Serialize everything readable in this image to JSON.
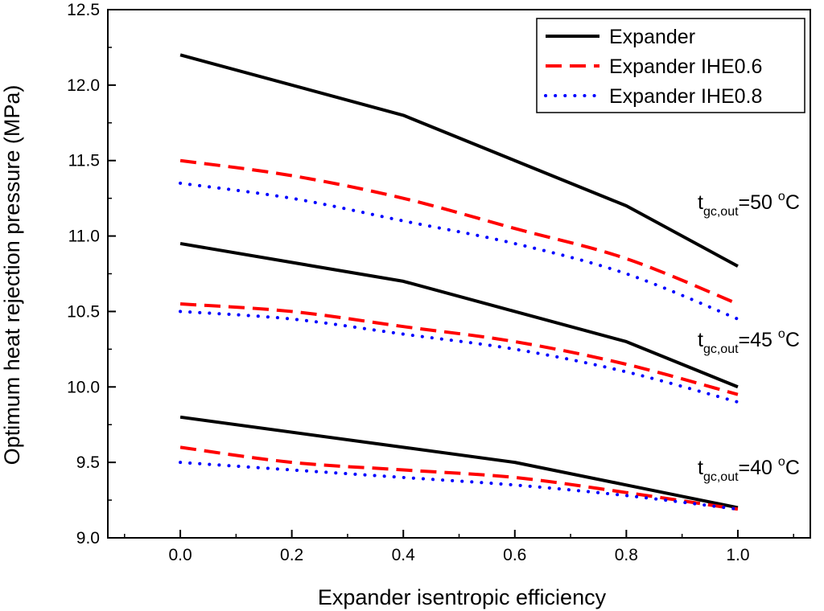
{
  "chart_data": {
    "type": "line",
    "xlabel": "Expander isentropic efficiency",
    "ylabel": "Optimum heat rejection pressure (MPa)",
    "xlim": [
      -0.13,
      1.13
    ],
    "ylim": [
      9.0,
      12.5
    ],
    "xticks": [
      0.0,
      0.2,
      0.4,
      0.6,
      0.8,
      1.0
    ],
    "xtick_labels": [
      "0.0",
      "0.2",
      "0.4",
      "0.6",
      "0.8",
      "1.0"
    ],
    "yticks": [
      9.0,
      9.5,
      10.0,
      10.5,
      11.0,
      11.5,
      12.0,
      12.5
    ],
    "ytick_labels": [
      "9.0",
      "9.5",
      "10.0",
      "10.5",
      "11.0",
      "11.5",
      "12.0",
      "12.5"
    ],
    "grid": false,
    "legend_position": "top-right",
    "legend": [
      {
        "label": "Expander",
        "color": "#000000",
        "style": "solid"
      },
      {
        "label": "Expander IHE0.6",
        "color": "#ff0000",
        "style": "dashed"
      },
      {
        "label": "Expander IHE0.8",
        "color": "#0000ff",
        "style": "dotted"
      }
    ],
    "groups": [
      {
        "annotation": {
          "main": "t",
          "sub": "gc,out",
          "rest": "=50 ",
          "sup": "o",
          "unit": "C"
        },
        "series": [
          {
            "name": "Expander",
            "x": [
              0.0,
              0.4,
              0.6,
              0.8,
              1.0
            ],
            "y": [
              12.2,
              11.8,
              11.5,
              11.2,
              10.8
            ]
          },
          {
            "name": "Expander IHE0.6",
            "x": [
              0.0,
              0.2,
              0.4,
              0.6,
              0.8,
              1.0
            ],
            "y": [
              11.5,
              11.4,
              11.25,
              11.05,
              10.85,
              10.55
            ]
          },
          {
            "name": "Expander IHE0.8",
            "x": [
              0.0,
              0.2,
              0.4,
              0.6,
              0.8,
              1.0
            ],
            "y": [
              11.35,
              11.25,
              11.1,
              10.95,
              10.75,
              10.45
            ]
          }
        ]
      },
      {
        "annotation": {
          "main": "t",
          "sub": "gc,out",
          "rest": "=45 ",
          "sup": "o",
          "unit": "C"
        },
        "series": [
          {
            "name": "Expander",
            "x": [
              0.0,
              0.4,
              0.6,
              0.8,
              1.0
            ],
            "y": [
              10.95,
              10.7,
              10.5,
              10.3,
              10.0
            ]
          },
          {
            "name": "Expander IHE0.6",
            "x": [
              0.0,
              0.2,
              0.4,
              0.6,
              0.8,
              1.0
            ],
            "y": [
              10.55,
              10.5,
              10.4,
              10.3,
              10.15,
              9.95
            ]
          },
          {
            "name": "Expander IHE0.8",
            "x": [
              0.0,
              0.2,
              0.4,
              0.6,
              0.8,
              1.0
            ],
            "y": [
              10.5,
              10.45,
              10.35,
              10.25,
              10.1,
              9.9
            ]
          }
        ]
      },
      {
        "annotation": {
          "main": "t",
          "sub": "gc,out",
          "rest": "=40 ",
          "sup": "o",
          "unit": "C"
        },
        "series": [
          {
            "name": "Expander",
            "x": [
              0.0,
              0.4,
              0.6,
              0.8,
              1.0
            ],
            "y": [
              9.8,
              9.6,
              9.5,
              9.35,
              9.2
            ]
          },
          {
            "name": "Expander IHE0.6",
            "x": [
              0.0,
              0.2,
              0.4,
              0.6,
              0.8,
              1.0
            ],
            "y": [
              9.6,
              9.5,
              9.45,
              9.4,
              9.3,
              9.19
            ]
          },
          {
            "name": "Expander IHE0.8",
            "x": [
              0.0,
              0.2,
              0.4,
              0.6,
              0.8,
              1.0
            ],
            "y": [
              9.5,
              9.45,
              9.4,
              9.35,
              9.28,
              9.19
            ]
          }
        ]
      }
    ]
  }
}
